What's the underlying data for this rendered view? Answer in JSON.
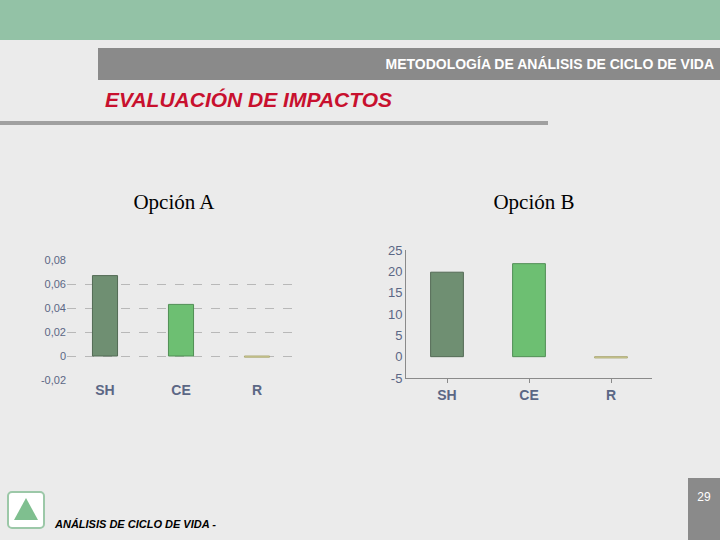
{
  "slide": {
    "header": "METODOLOGÍA DE ANÁLISIS DE CICLO DE VIDA",
    "title": "EVALUACIÓN DE IMPACTOS",
    "footer": "ANÁLISIS DE CICLO DE VIDA -",
    "page": "29"
  },
  "chart_data": [
    {
      "type": "bar",
      "title": "Opción A",
      "categories": [
        "SH",
        "CE",
        "R"
      ],
      "values": [
        0.067,
        0.043,
        -0.001
      ],
      "colors": [
        "#6f8f72",
        "#6dbf72",
        "#e6e2a0"
      ],
      "ylim": [
        -0.02,
        0.08
      ],
      "yticks": [
        {
          "value": -0.02,
          "label": "-0,02"
        },
        0,
        {
          "value": 0.02,
          "label": "0,02"
        },
        {
          "value": 0.04,
          "label": "0,04"
        },
        {
          "value": 0.06,
          "label": "0,06"
        },
        {
          "value": 0.08,
          "label": "0,08"
        }
      ],
      "grid": true
    },
    {
      "type": "bar",
      "title": "Opción B",
      "categories": [
        "SH",
        "CE",
        "R"
      ],
      "values": [
        19.8,
        21.8,
        -0.3
      ],
      "colors": [
        "#6f8f72",
        "#6dbf72",
        "#e6e2a0"
      ],
      "ylim": [
        -5,
        25
      ],
      "yticks": [
        -5,
        0,
        5,
        10,
        15,
        20,
        25
      ],
      "grid": false
    }
  ]
}
